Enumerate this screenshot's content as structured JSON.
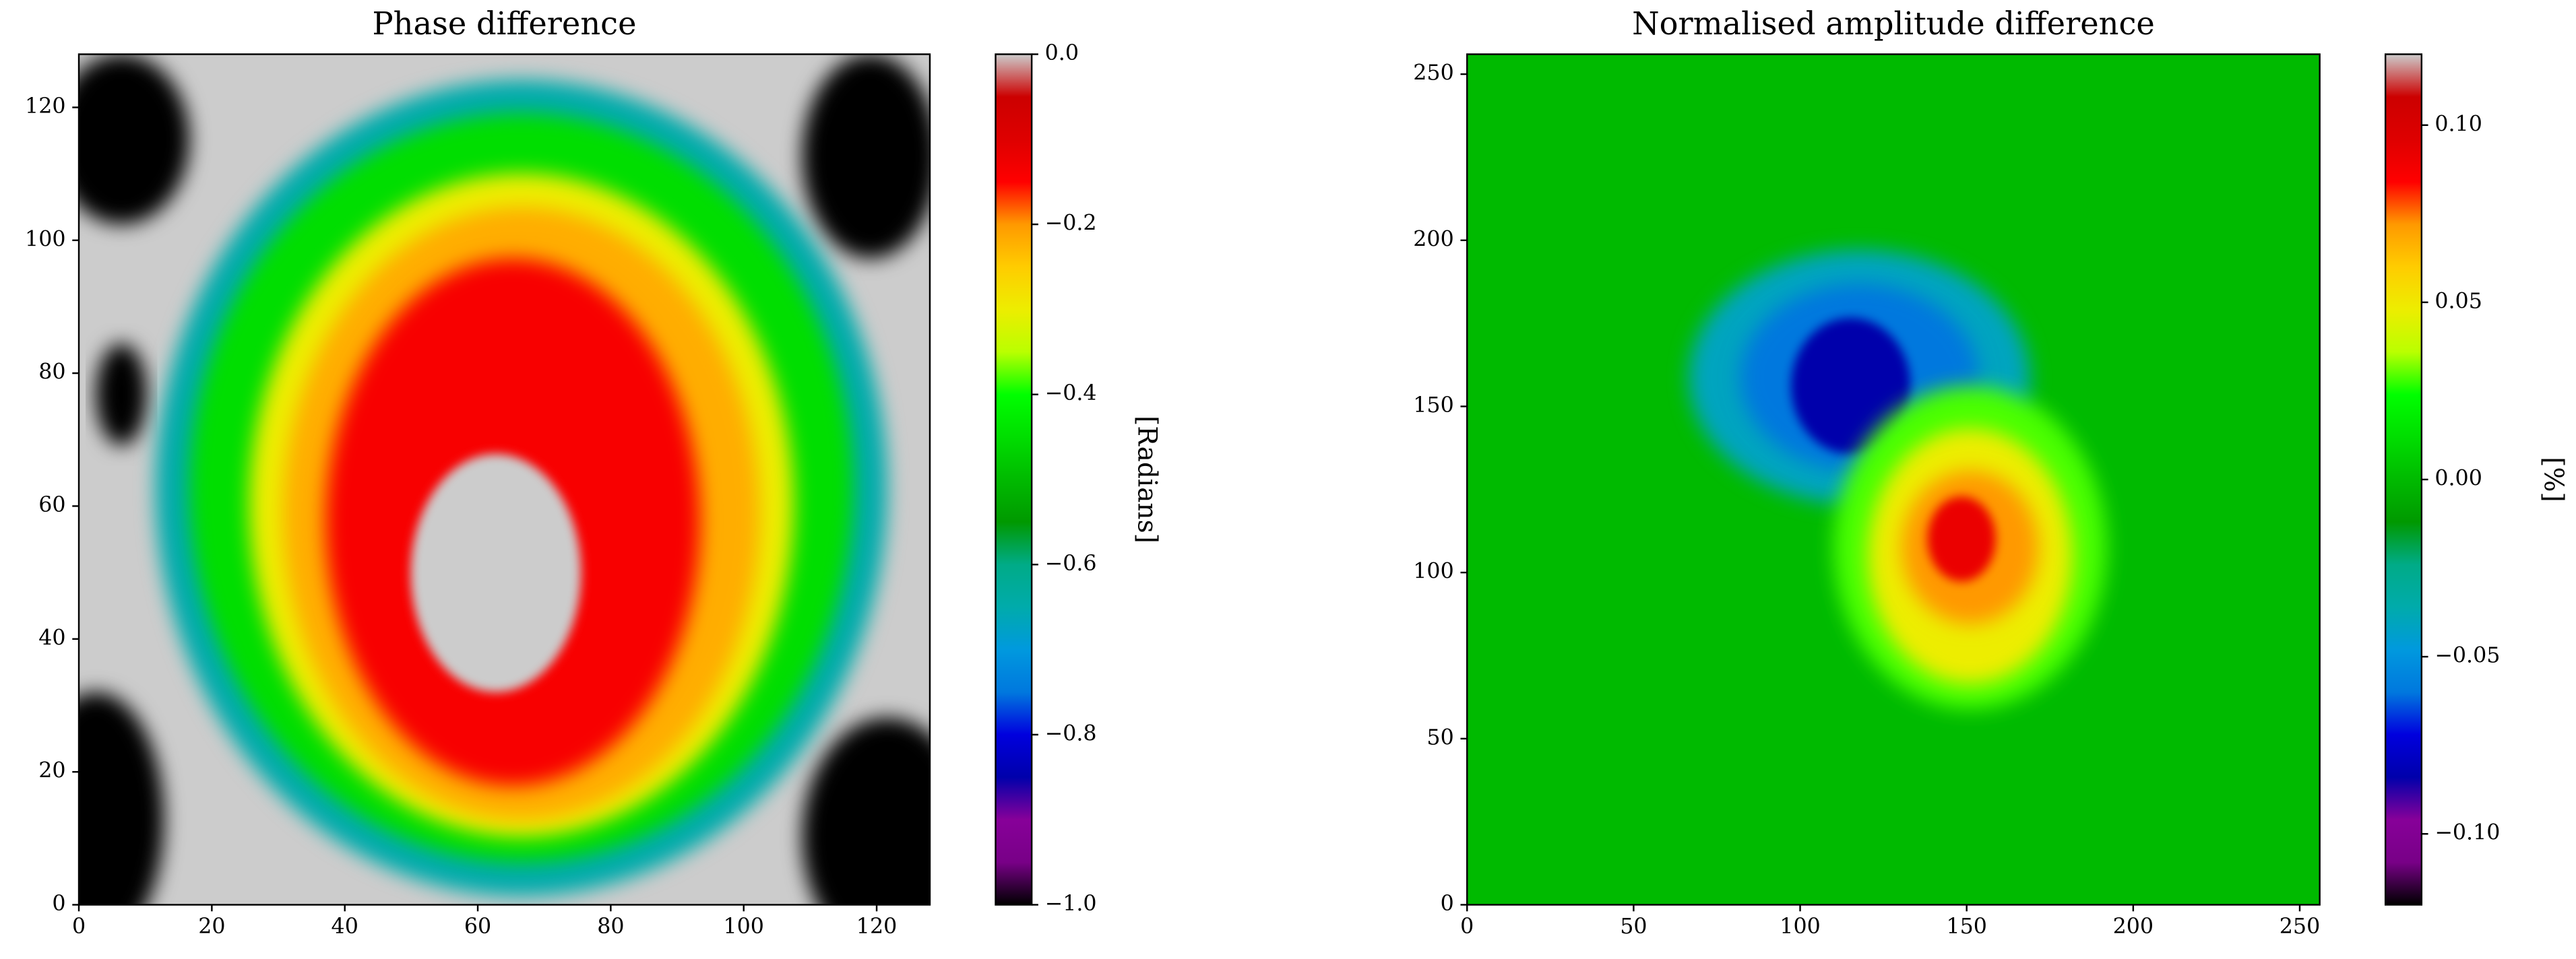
{
  "chart_data": [
    {
      "type": "heatmap",
      "title": "Phase difference",
      "xlim": [
        0,
        128
      ],
      "ylim": [
        0,
        128
      ],
      "xticks": [
        0,
        20,
        40,
        60,
        80,
        100,
        120
      ],
      "yticks": [
        0,
        20,
        40,
        60,
        80,
        100,
        120
      ],
      "colormap": "nipy_spectral",
      "colorbar": {
        "label": "[Radians]",
        "lim": [
          -1,
          0
        ],
        "ticks": [
          {
            "value": 0,
            "label": "0.0"
          },
          {
            "value": -0.2,
            "label": "−0.2"
          },
          {
            "value": -0.4,
            "label": "−0.4"
          },
          {
            "value": -0.6,
            "label": "−0.6"
          },
          {
            "value": -0.8,
            "label": "−0.8"
          },
          {
            "value": -1,
            "label": "−1.0"
          }
        ]
      }
    },
    {
      "type": "heatmap",
      "title": "Normalised amplitude difference",
      "xlim": [
        0,
        256
      ],
      "ylim": [
        0,
        256
      ],
      "xticks": [
        0,
        50,
        100,
        150,
        200,
        250
      ],
      "yticks": [
        0,
        50,
        100,
        150,
        200,
        250
      ],
      "colormap": "nipy_spectral",
      "colorbar": {
        "label": "[%]",
        "lim": [
          -0.12,
          0.12
        ],
        "ticks": [
          {
            "value": 0.1,
            "label": "0.10"
          },
          {
            "value": 0.05,
            "label": "0.05"
          },
          {
            "value": 0,
            "label": "0.00"
          },
          {
            "value": -0.05,
            "label": "−0.05"
          },
          {
            "value": -0.1,
            "label": "−0.10"
          }
        ]
      }
    }
  ]
}
